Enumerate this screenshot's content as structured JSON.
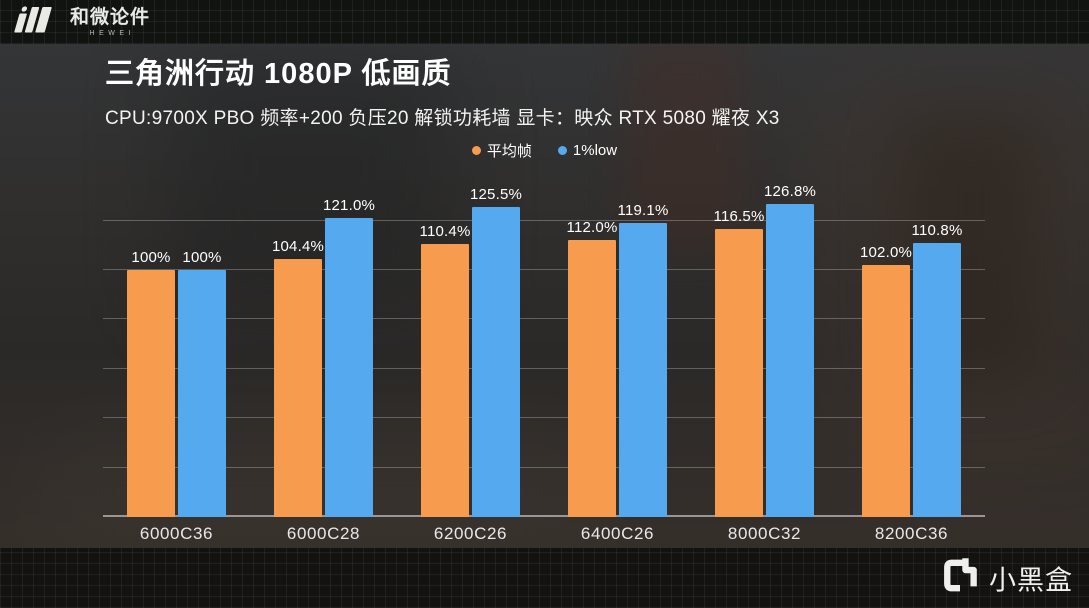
{
  "brand": {
    "name": "和微论件",
    "subname": "HEWEI"
  },
  "watermark": {
    "name": "小黑盒"
  },
  "chart_data": {
    "type": "bar",
    "title": "三角洲行动 1080P 低画质",
    "subtitle": "CPU:9700X PBO 频率+200 负压20 解锁功耗墙 显卡：映众 RTX 5080 耀夜 X3",
    "categories": [
      "6000C36",
      "6000C28",
      "6200C26",
      "6400C26",
      "8000C32",
      "8200C36"
    ],
    "series": [
      {
        "name": "平均帧",
        "color": "#F79B4E",
        "values": [
          100,
          104.4,
          110.4,
          112.0,
          116.5,
          102.0
        ],
        "labels": [
          "100%",
          "104.4%",
          "110.4%",
          "112.0%",
          "116.5%",
          "102.0%"
        ]
      },
      {
        "name": "1%low",
        "color": "#55AAEF",
        "values": [
          100,
          121.0,
          125.5,
          119.1,
          126.8,
          110.8
        ],
        "labels": [
          "100%",
          "121.0%",
          "125.5%",
          "119.1%",
          "126.8%",
          "110.8%"
        ]
      }
    ],
    "unit": "percent",
    "ylim": [
      0,
      120
    ],
    "grid_step": 20,
    "grid": "on",
    "y_axis_tick_labels": "none",
    "legend_position": "top-center"
  }
}
